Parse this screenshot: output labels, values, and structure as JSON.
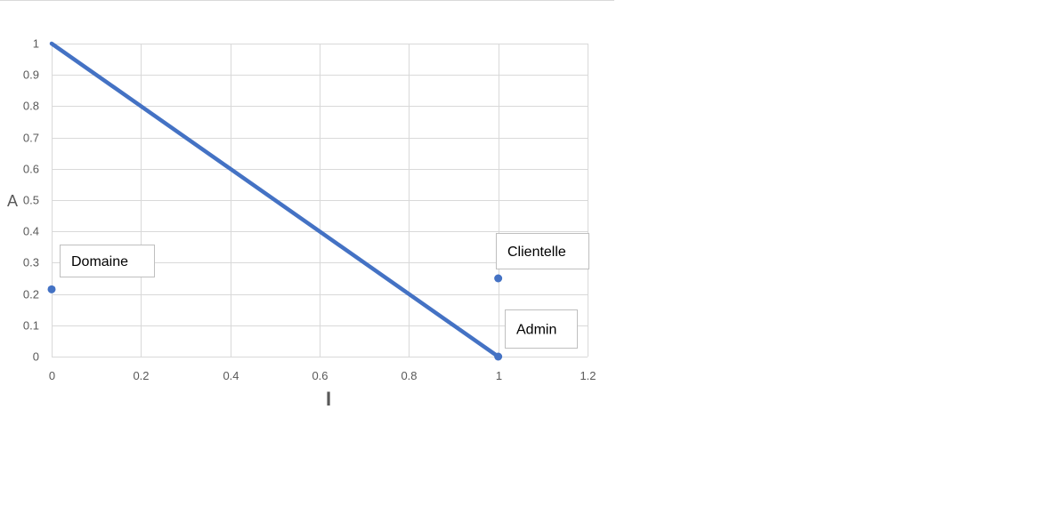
{
  "chart_data": {
    "type": "scatter",
    "title": "",
    "xlabel": "I",
    "ylabel": "A",
    "xlim": [
      0,
      1.2
    ],
    "ylim": [
      0,
      1
    ],
    "x_ticks": [
      "0",
      "0.2",
      "0.4",
      "0.6",
      "0.8",
      "1",
      "1.2"
    ],
    "y_ticks": [
      "0",
      "0.1",
      "0.2",
      "0.3",
      "0.4",
      "0.5",
      "0.6",
      "0.7",
      "0.8",
      "0.9",
      "1"
    ],
    "grid": true,
    "legend": "none",
    "colors": {
      "series": "#4472c4",
      "grid": "#d9d9d9",
      "text": "#595959"
    },
    "series": [
      {
        "type": "line",
        "points": [
          {
            "x": 0,
            "y": 1
          },
          {
            "x": 1,
            "y": 0
          }
        ]
      },
      {
        "type": "scatter",
        "points": [
          {
            "x": 0,
            "y": 0.215,
            "label": "Domaine"
          },
          {
            "x": 1,
            "y": 0.25,
            "label": "Clientelle"
          },
          {
            "x": 1,
            "y": 0,
            "label": "Admin"
          }
        ]
      }
    ]
  }
}
